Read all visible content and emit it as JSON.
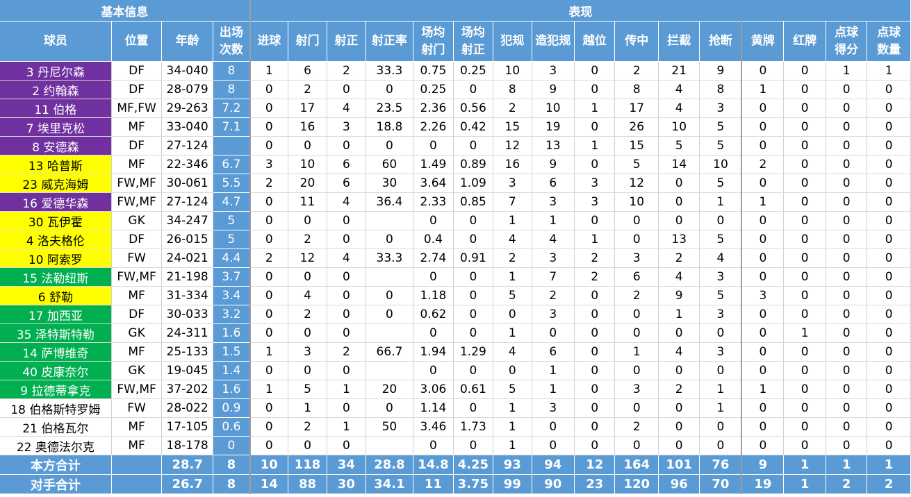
{
  "groups": {
    "basic": "基本信息",
    "performance": "表现"
  },
  "headers": {
    "player": "球员",
    "position": "位置",
    "age": "年龄",
    "apps_l1": "出场",
    "apps_l2": "次数",
    "goals": "进球",
    "shots": "射门",
    "sot": "射正",
    "sot_pct": "射正率",
    "shots_pg_l1": "场均",
    "shots_pg_l2": "射门",
    "sot_pg_l1": "场均",
    "sot_pg_l2": "射正",
    "fouls": "犯规",
    "fouled": "造犯规",
    "offsides": "越位",
    "crosses": "传中",
    "interceptions": "拦截",
    "tackles": "抢断",
    "yellow": "黄牌",
    "red": "红牌",
    "pk_scored_l1": "点球",
    "pk_scored_l2": "得分",
    "pk_att_l1": "点球",
    "pk_att_l2": "数量"
  },
  "colors": {
    "header_blue": "#5b9bd5",
    "purple": "#7030a0",
    "yellow": "#ffff00",
    "green": "#00b050",
    "white": "#ffffff"
  },
  "rows": [
    {
      "name": "3 丹尼尔森",
      "color": "purple",
      "pos": "DF",
      "age": "34-040",
      "apps": "8",
      "goals": "1",
      "shots": "6",
      "sot": "2",
      "sot_pct": "33.3",
      "shots_pg": "0.75",
      "sot_pg": "0.25",
      "fouls": "10",
      "fouled": "3",
      "offsides": "0",
      "crosses": "2",
      "interceptions": "21",
      "tackles": "9",
      "yellow": "0",
      "red": "0",
      "pk_scored": "1",
      "pk_att": "1"
    },
    {
      "name": "2 约翰森",
      "color": "purple",
      "pos": "DF",
      "age": "28-079",
      "apps": "8",
      "goals": "0",
      "shots": "2",
      "sot": "0",
      "sot_pct": "0",
      "shots_pg": "0.25",
      "sot_pg": "0",
      "fouls": "8",
      "fouled": "9",
      "offsides": "0",
      "crosses": "8",
      "interceptions": "4",
      "tackles": "8",
      "yellow": "1",
      "red": "0",
      "pk_scored": "0",
      "pk_att": "0"
    },
    {
      "name": "11 伯格",
      "color": "purple",
      "pos": "MF,FW",
      "age": "29-263",
      "apps": "7.2",
      "goals": "0",
      "shots": "17",
      "sot": "4",
      "sot_pct": "23.5",
      "shots_pg": "2.36",
      "sot_pg": "0.56",
      "fouls": "2",
      "fouled": "10",
      "offsides": "1",
      "crosses": "17",
      "interceptions": "4",
      "tackles": "3",
      "yellow": "0",
      "red": "0",
      "pk_scored": "0",
      "pk_att": "0"
    },
    {
      "name": "7 埃里克松",
      "color": "purple",
      "pos": "MF",
      "age": "33-040",
      "apps": "7.1",
      "goals": "0",
      "shots": "16",
      "sot": "3",
      "sot_pct": "18.8",
      "shots_pg": "2.26",
      "sot_pg": "0.42",
      "fouls": "15",
      "fouled": "19",
      "offsides": "0",
      "crosses": "26",
      "interceptions": "10",
      "tackles": "5",
      "yellow": "0",
      "red": "0",
      "pk_scored": "0",
      "pk_att": "0"
    },
    {
      "name": "8 安德森",
      "color": "purple",
      "pos": "DF",
      "age": "27-124",
      "apps": "",
      "goals": "0",
      "shots": "0",
      "sot": "0",
      "sot_pct": "0",
      "shots_pg": "0",
      "sot_pg": "0",
      "fouls": "12",
      "fouled": "13",
      "offsides": "1",
      "crosses": "15",
      "interceptions": "5",
      "tackles": "5",
      "yellow": "0",
      "red": "0",
      "pk_scored": "0",
      "pk_att": "0"
    },
    {
      "name": "13 哈普斯",
      "color": "yellow",
      "pos": "MF",
      "age": "22-346",
      "apps": "6.7",
      "goals": "3",
      "shots": "10",
      "sot": "6",
      "sot_pct": "60",
      "shots_pg": "1.49",
      "sot_pg": "0.89",
      "fouls": "16",
      "fouled": "9",
      "offsides": "0",
      "crosses": "5",
      "interceptions": "14",
      "tackles": "10",
      "yellow": "2",
      "red": "0",
      "pk_scored": "0",
      "pk_att": "0"
    },
    {
      "name": "23 威克海姆",
      "color": "yellow",
      "pos": "FW,MF",
      "age": "30-061",
      "apps": "5.5",
      "goals": "2",
      "shots": "20",
      "sot": "6",
      "sot_pct": "30",
      "shots_pg": "3.64",
      "sot_pg": "1.09",
      "fouls": "3",
      "fouled": "6",
      "offsides": "3",
      "crosses": "12",
      "interceptions": "0",
      "tackles": "5",
      "yellow": "0",
      "red": "0",
      "pk_scored": "0",
      "pk_att": "0"
    },
    {
      "name": "16 爱德华森",
      "color": "purple",
      "pos": "FW,MF",
      "age": "27-124",
      "apps": "4.7",
      "goals": "0",
      "shots": "11",
      "sot": "4",
      "sot_pct": "36.4",
      "shots_pg": "2.33",
      "sot_pg": "0.85",
      "fouls": "7",
      "fouled": "3",
      "offsides": "3",
      "crosses": "10",
      "interceptions": "0",
      "tackles": "1",
      "yellow": "1",
      "red": "0",
      "pk_scored": "0",
      "pk_att": "0"
    },
    {
      "name": "30 瓦伊霍",
      "color": "yellow",
      "pos": "GK",
      "age": "34-247",
      "apps": "5",
      "goals": "0",
      "shots": "0",
      "sot": "0",
      "sot_pct": "",
      "shots_pg": "0",
      "sot_pg": "0",
      "fouls": "1",
      "fouled": "1",
      "offsides": "0",
      "crosses": "0",
      "interceptions": "0",
      "tackles": "0",
      "yellow": "0",
      "red": "0",
      "pk_scored": "0",
      "pk_att": "0"
    },
    {
      "name": "4 洛夫格伦",
      "color": "yellow",
      "pos": "DF",
      "age": "26-015",
      "apps": "5",
      "goals": "0",
      "shots": "2",
      "sot": "0",
      "sot_pct": "0",
      "shots_pg": "0.4",
      "sot_pg": "0",
      "fouls": "4",
      "fouled": "4",
      "offsides": "1",
      "crosses": "0",
      "interceptions": "13",
      "tackles": "5",
      "yellow": "0",
      "red": "0",
      "pk_scored": "0",
      "pk_att": "0"
    },
    {
      "name": "10 阿索罗",
      "color": "yellow",
      "pos": "FW",
      "age": "24-021",
      "apps": "4.4",
      "goals": "2",
      "shots": "12",
      "sot": "4",
      "sot_pct": "33.3",
      "shots_pg": "2.74",
      "sot_pg": "0.91",
      "fouls": "2",
      "fouled": "3",
      "offsides": "2",
      "crosses": "3",
      "interceptions": "2",
      "tackles": "4",
      "yellow": "0",
      "red": "0",
      "pk_scored": "0",
      "pk_att": "0"
    },
    {
      "name": "15 法勒纽斯",
      "color": "green",
      "pos": "FW,MF",
      "age": "21-198",
      "apps": "3.7",
      "goals": "0",
      "shots": "0",
      "sot": "0",
      "sot_pct": "",
      "shots_pg": "0",
      "sot_pg": "0",
      "fouls": "1",
      "fouled": "7",
      "offsides": "2",
      "crosses": "6",
      "interceptions": "4",
      "tackles": "3",
      "yellow": "0",
      "red": "0",
      "pk_scored": "0",
      "pk_att": "0"
    },
    {
      "name": "6 舒勒",
      "color": "yellow",
      "pos": "MF",
      "age": "31-334",
      "apps": "3.4",
      "goals": "0",
      "shots": "4",
      "sot": "0",
      "sot_pct": "0",
      "shots_pg": "1.18",
      "sot_pg": "0",
      "fouls": "5",
      "fouled": "2",
      "offsides": "0",
      "crosses": "2",
      "interceptions": "9",
      "tackles": "5",
      "yellow": "3",
      "red": "0",
      "pk_scored": "0",
      "pk_att": "0"
    },
    {
      "name": "17 加西亚",
      "color": "green",
      "pos": "DF",
      "age": "30-033",
      "apps": "3.2",
      "goals": "0",
      "shots": "2",
      "sot": "0",
      "sot_pct": "0",
      "shots_pg": "0.62",
      "sot_pg": "0",
      "fouls": "0",
      "fouled": "3",
      "offsides": "0",
      "crosses": "0",
      "interceptions": "1",
      "tackles": "3",
      "yellow": "0",
      "red": "0",
      "pk_scored": "0",
      "pk_att": "0"
    },
    {
      "name": "35 泽特斯特勒",
      "color": "green",
      "pos": "GK",
      "age": "24-311",
      "apps": "1.6",
      "goals": "0",
      "shots": "0",
      "sot": "0",
      "sot_pct": "",
      "shots_pg": "0",
      "sot_pg": "0",
      "fouls": "1",
      "fouled": "0",
      "offsides": "0",
      "crosses": "0",
      "interceptions": "0",
      "tackles": "0",
      "yellow": "0",
      "red": "1",
      "pk_scored": "0",
      "pk_att": "0"
    },
    {
      "name": "14 萨博维奇",
      "color": "green",
      "pos": "MF",
      "age": "25-133",
      "apps": "1.5",
      "goals": "1",
      "shots": "3",
      "sot": "2",
      "sot_pct": "66.7",
      "shots_pg": "1.94",
      "sot_pg": "1.29",
      "fouls": "4",
      "fouled": "6",
      "offsides": "0",
      "crosses": "1",
      "interceptions": "4",
      "tackles": "3",
      "yellow": "0",
      "red": "0",
      "pk_scored": "0",
      "pk_att": "0"
    },
    {
      "name": "40 皮康奈尔",
      "color": "green",
      "pos": "GK",
      "age": "19-045",
      "apps": "1.4",
      "goals": "0",
      "shots": "0",
      "sot": "0",
      "sot_pct": "",
      "shots_pg": "0",
      "sot_pg": "0",
      "fouls": "0",
      "fouled": "1",
      "offsides": "0",
      "crosses": "0",
      "interceptions": "0",
      "tackles": "0",
      "yellow": "0",
      "red": "0",
      "pk_scored": "0",
      "pk_att": "0"
    },
    {
      "name": "9 拉德蒂拿克",
      "color": "green",
      "pos": "FW,MF",
      "age": "37-202",
      "apps": "1.6",
      "goals": "1",
      "shots": "5",
      "sot": "1",
      "sot_pct": "20",
      "shots_pg": "3.06",
      "sot_pg": "0.61",
      "fouls": "5",
      "fouled": "1",
      "offsides": "0",
      "crosses": "3",
      "interceptions": "2",
      "tackles": "1",
      "yellow": "1",
      "red": "0",
      "pk_scored": "0",
      "pk_att": "0"
    },
    {
      "name": "18 伯格斯特罗姆",
      "color": "white",
      "pos": "FW",
      "age": "28-022",
      "apps": "0.9",
      "goals": "0",
      "shots": "1",
      "sot": "0",
      "sot_pct": "0",
      "shots_pg": "1.14",
      "sot_pg": "0",
      "fouls": "1",
      "fouled": "3",
      "offsides": "0",
      "crosses": "0",
      "interceptions": "0",
      "tackles": "1",
      "yellow": "0",
      "red": "0",
      "pk_scored": "0",
      "pk_att": "0"
    },
    {
      "name": "21 伯格瓦尔",
      "color": "white",
      "pos": "MF",
      "age": "17-105",
      "apps": "0.6",
      "goals": "0",
      "shots": "2",
      "sot": "1",
      "sot_pct": "50",
      "shots_pg": "3.46",
      "sot_pg": "1.73",
      "fouls": "1",
      "fouled": "0",
      "offsides": "0",
      "crosses": "2",
      "interceptions": "0",
      "tackles": "0",
      "yellow": "0",
      "red": "0",
      "pk_scored": "0",
      "pk_att": "0"
    },
    {
      "name": "22 奥德法尔克",
      "color": "white",
      "pos": "MF",
      "age": "18-178",
      "apps": "0",
      "goals": "0",
      "shots": "0",
      "sot": "0",
      "sot_pct": "",
      "shots_pg": "0",
      "sot_pg": "0",
      "fouls": "1",
      "fouled": "0",
      "offsides": "0",
      "crosses": "0",
      "interceptions": "0",
      "tackles": "0",
      "yellow": "0",
      "red": "0",
      "pk_scored": "0",
      "pk_att": "0"
    }
  ],
  "totals": [
    {
      "label": "本方合计",
      "pos": "",
      "age": "28.7",
      "apps": "8",
      "goals": "10",
      "shots": "118",
      "sot": "34",
      "sot_pct": "28.8",
      "shots_pg": "14.8",
      "sot_pg": "4.25",
      "fouls": "93",
      "fouled": "94",
      "offsides": "12",
      "crosses": "164",
      "interceptions": "101",
      "tackles": "76",
      "yellow": "9",
      "red": "1",
      "pk_scored": "1",
      "pk_att": "1"
    },
    {
      "label": "对手合计",
      "pos": "",
      "age": "26.7",
      "apps": "8",
      "goals": "14",
      "shots": "88",
      "sot": "30",
      "sot_pct": "34.1",
      "shots_pg": "11",
      "sot_pg": "3.75",
      "fouls": "99",
      "fouled": "90",
      "offsides": "23",
      "crosses": "120",
      "interceptions": "96",
      "tackles": "70",
      "yellow": "19",
      "red": "1",
      "pk_scored": "2",
      "pk_att": "2"
    }
  ]
}
